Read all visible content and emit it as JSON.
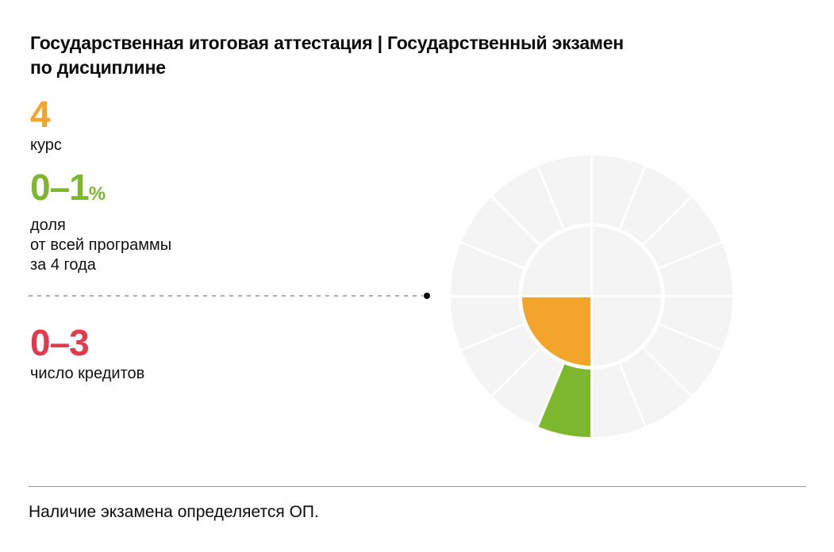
{
  "page": {
    "title_line1": "Государственная итоговая аттестация | Государственный экзамен",
    "title_line2": "по дисциплине",
    "footer_note": "Наличие экзамена определяется ОП."
  },
  "stats": {
    "course": {
      "value": "4",
      "label": "курс",
      "color": "#F3A52B"
    },
    "share": {
      "value": "0–1",
      "unit": "%",
      "label_lines": [
        "доля",
        "от всей программы",
        "за 4 года"
      ],
      "color": "#7CB72E"
    },
    "credits": {
      "value": "0–3",
      "label": "число кредитов",
      "color": "#E2394C"
    }
  },
  "chart_data": {
    "type": "sunburst",
    "title": "",
    "angle_reference": "degrees clockwise from 12 o'clock",
    "base_color": "#F4F4F4",
    "separator_color": "#FFFFFF",
    "inner_circle": {
      "quadrants": 4,
      "highlighted": [
        {
          "start_deg": 180,
          "end_deg": 270,
          "color": "#F3A52B"
        }
      ]
    },
    "outer_ring": {
      "sectors": 16,
      "highlighted": [
        {
          "start_deg": 180,
          "end_deg": 202.5,
          "color": "#7CB72E"
        }
      ]
    }
  }
}
